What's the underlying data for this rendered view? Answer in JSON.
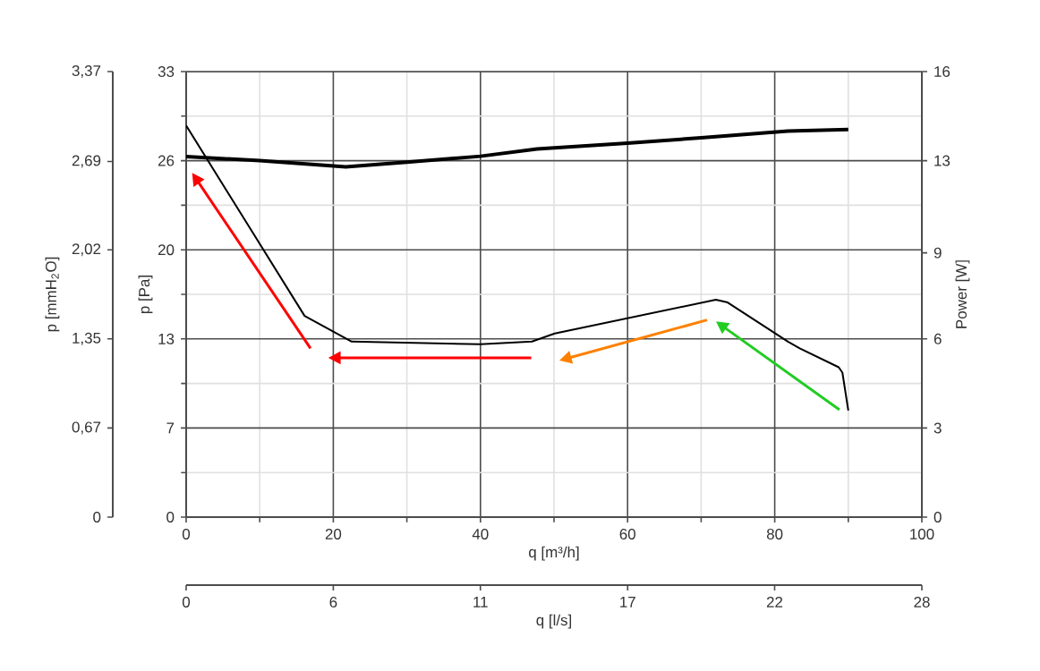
{
  "chart_data": {
    "type": "line",
    "xlabel": "q [m³/h]",
    "ylabel": "p [Pa]",
    "y2label": "Power [W]",
    "y3label": "p [mmH$_{2}$O]",
    "x2label": "q [l/s]",
    "xlim": [
      0,
      100
    ],
    "xticks": [
      0,
      20,
      40,
      60,
      80,
      100
    ],
    "ylim": [
      0,
      33
    ],
    "yticks": [
      0,
      {
        "value": 6.6,
        "label": "7"
      },
      {
        "value": 13.2,
        "label": "13"
      },
      {
        "value": 19.8,
        "label": "20"
      },
      {
        "value": 26.4,
        "label": "26"
      },
      33
    ],
    "y2lim": [
      0,
      16
    ],
    "y2ticks": [
      0,
      {
        "value": 3.2,
        "label": "3"
      },
      {
        "value": 6.4,
        "label": "6"
      },
      {
        "value": 9.49,
        "label": "9"
      },
      {
        "value": 12.8,
        "label": "13"
      },
      16
    ],
    "y3lim": [
      0,
      3.37
    ],
    "y3ticks": [
      0,
      {
        "value": 0.674,
        "label": "0,67"
      },
      {
        "value": 1.348,
        "label": "1,35"
      },
      {
        "value": 2.022,
        "label": "2,02"
      },
      {
        "value": 2.69,
        "label": "2,69"
      },
      {
        "value": 3.37,
        "label": "3,37"
      }
    ],
    "x2lim": [
      0,
      27.78
    ],
    "x2ticks": [
      0,
      {
        "value": 5.556,
        "label": "6"
      },
      {
        "value": 11.11,
        "label": "11"
      },
      {
        "value": 16.67,
        "label": "17"
      },
      {
        "value": 22.22,
        "label": "22"
      },
      {
        "value": 27.78,
        "label": "28"
      }
    ],
    "grid": true,
    "marker": "none",
    "line_style": "solid",
    "series": [
      {
        "color": "#000000",
        "x": [
          0,
          16.1,
          22.5,
          40,
          47,
          50.1,
          72,
          73.6,
          81.8,
          83.4,
          88.7,
          89.2,
          90
        ],
        "values": [
          29.0,
          14.9,
          13.0,
          12.8,
          13.0,
          13.6,
          16.1,
          15.9,
          13.0,
          12.5,
          11.1,
          10.7,
          7.9
        ]
      },
      {
        "color": "#000000",
        "axis": "y2",
        "x": [
          0,
          10,
          21.7,
          30,
          40,
          47.7,
          60,
          70,
          81.8,
          90
        ],
        "values": [
          12.95,
          12.8,
          12.58,
          12.75,
          12.96,
          13.22,
          13.43,
          13.62,
          13.86,
          13.92
        ]
      }
    ]
  }
}
